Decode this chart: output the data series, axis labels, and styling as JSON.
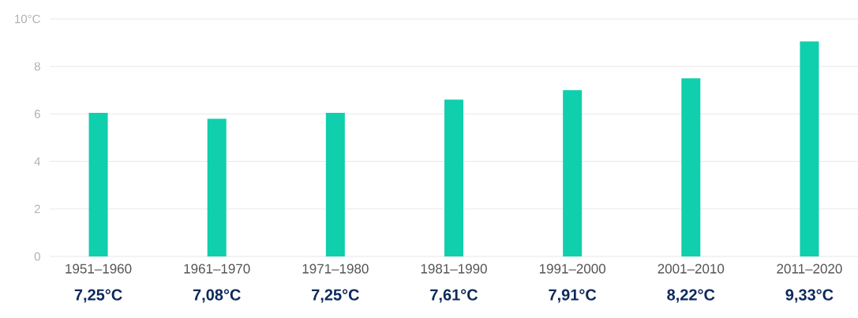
{
  "chart_data": {
    "type": "bar",
    "categories": [
      "1951–1960",
      "1961–1970",
      "1971–1980",
      "1981–1990",
      "1991–2000",
      "2001–2010",
      "2011–2020"
    ],
    "values": [
      6.05,
      5.8,
      6.05,
      6.6,
      7.0,
      7.5,
      9.05
    ],
    "color": "#10cfac",
    "ylim": [
      0,
      10
    ],
    "yticks": [
      0,
      2,
      4,
      6,
      8,
      {
        "value": 10,
        "label": "10°C"
      }
    ],
    "grid": "y",
    "annotations": [
      "7,25°C",
      "7,08°C",
      "7,25°C",
      "7,61°C",
      "7,91°C",
      "8,22°C",
      "9,33°C"
    ]
  }
}
